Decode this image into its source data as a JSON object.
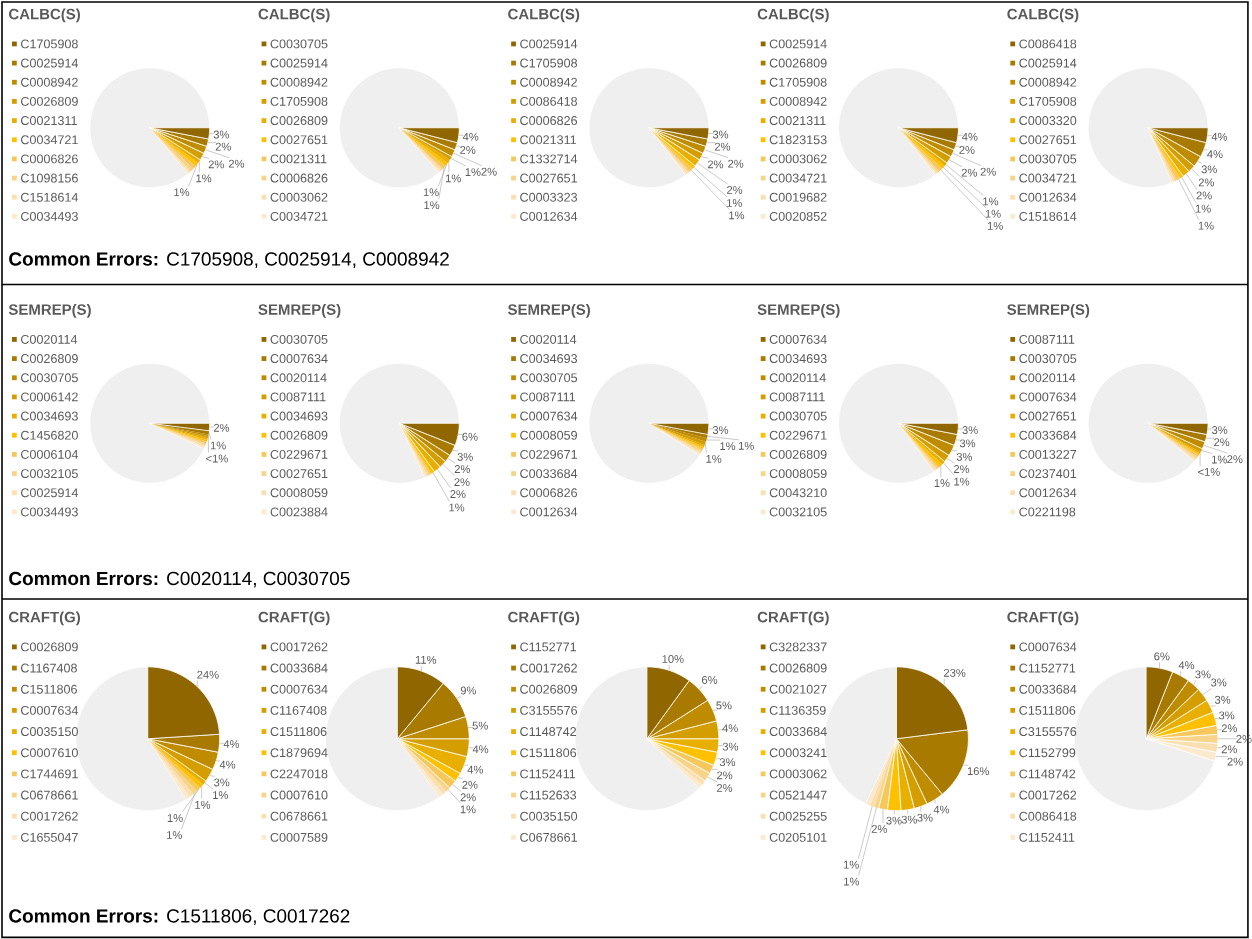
{
  "chart_data": [
    {
      "type": "pie",
      "title": "CALBC(S)",
      "legend": "left",
      "categories": [
        "C1705908",
        "C0025914",
        "C0008942",
        "C0026809",
        "C0021311",
        "C0034721",
        "C0006826",
        "C1098156",
        "C1518614",
        "C0034493",
        null
      ],
      "values": [
        3,
        2,
        2,
        2,
        1,
        1,
        1,
        1,
        0.5,
        0.5,
        86
      ],
      "value_labels": [
        "3%",
        "2%",
        "2%",
        "2%",
        "1%",
        "1%",
        null,
        null,
        null,
        null,
        null
      ],
      "colors": [
        "#8f6600",
        "#a87a00",
        "#bf8c00",
        "#d49d00",
        "#e8ae00",
        "#ffc000",
        "#f6c85c",
        "#f8d48a",
        "#fadfb0",
        "#fceacf",
        "#efefef"
      ]
    },
    {
      "type": "pie",
      "title": "CALBC(S)",
      "legend": "left",
      "categories": [
        "C0030705",
        "C0025914",
        "C0008942",
        "C1705908",
        "C0026809",
        "C0027651",
        "C0021311",
        "C0006826",
        "C0003062",
        "C0034721",
        null
      ],
      "values": [
        4,
        2,
        2,
        1,
        1,
        1,
        1,
        0.5,
        0.5,
        0.5,
        86.5
      ],
      "value_labels": [
        "4%",
        "2%",
        "2%",
        "1%",
        "1%",
        "1%",
        "1%",
        null,
        null,
        null,
        null
      ],
      "colors": [
        "#8f6600",
        "#a87a00",
        "#bf8c00",
        "#d49d00",
        "#e8ae00",
        "#ffc000",
        "#f6c85c",
        "#f8d48a",
        "#fadfb0",
        "#fceacf",
        "#efefef"
      ]
    },
    {
      "type": "pie",
      "title": "CALBC(S)",
      "legend": "left",
      "categories": [
        "C0025914",
        "C1705908",
        "C0008942",
        "C0086418",
        "C0006826",
        "C0021311",
        "C1332714",
        "C0027651",
        "C0003323",
        "C0012634",
        null
      ],
      "values": [
        3,
        2,
        2,
        2,
        2,
        1,
        1,
        0.5,
        0.5,
        0.5,
        85.5
      ],
      "value_labels": [
        "3%",
        "2%",
        "2%",
        "2%",
        "2%",
        "1%",
        "1%",
        null,
        null,
        null,
        null
      ],
      "colors": [
        "#8f6600",
        "#a87a00",
        "#bf8c00",
        "#d49d00",
        "#e8ae00",
        "#ffc000",
        "#f6c85c",
        "#f8d48a",
        "#fadfb0",
        "#fceacf",
        "#efefef"
      ]
    },
    {
      "type": "pie",
      "title": "CALBC(S)",
      "legend": "left",
      "categories": [
        "C0025914",
        "C0026809",
        "C1705908",
        "C0008942",
        "C0021311",
        "C1823153",
        "C0003062",
        "C0034721",
        "C0019682",
        "C0020852",
        null
      ],
      "values": [
        4,
        2,
        2,
        2,
        1,
        1,
        1,
        0.5,
        0.5,
        0.5,
        85.5
      ],
      "value_labels": [
        "4%",
        "2%",
        "2%",
        "2%",
        "1%",
        "1%",
        "1%",
        null,
        null,
        null,
        null
      ],
      "colors": [
        "#8f6600",
        "#a87a00",
        "#bf8c00",
        "#d49d00",
        "#e8ae00",
        "#ffc000",
        "#f6c85c",
        "#f8d48a",
        "#fadfb0",
        "#fceacf",
        "#efefef"
      ]
    },
    {
      "type": "pie",
      "title": "CALBC(S)",
      "legend": "left",
      "categories": [
        "C0086418",
        "C0025914",
        "C0008942",
        "C1705908",
        "C0003320",
        "C0027651",
        "C0030705",
        "C0034721",
        "C0012634",
        "C1518614",
        null
      ],
      "values": [
        4,
        4,
        3,
        2,
        2,
        1,
        1,
        0.5,
        0.5,
        0.5,
        81.5
      ],
      "value_labels": [
        "4%",
        "4%",
        "3%",
        "2%",
        "2%",
        "1%",
        "1%",
        null,
        null,
        null,
        null
      ],
      "colors": [
        "#8f6600",
        "#a87a00",
        "#bf8c00",
        "#d49d00",
        "#e8ae00",
        "#ffc000",
        "#f6c85c",
        "#f8d48a",
        "#fadfb0",
        "#fceacf",
        "#efefef"
      ]
    },
    {
      "type": "other",
      "annotations": [
        "**Common Errors:** C1705908, C0025914, C0008942"
      ]
    },
    {
      "type": "pie",
      "title": "SEMREP(S)",
      "legend": "left",
      "categories": [
        "C0020114",
        "C0026809",
        "C0030705",
        "C0006142",
        "C0034693",
        "C1456820",
        "C0006104",
        "C0032105",
        "C0025914",
        "C0034493",
        null
      ],
      "values": [
        2,
        1,
        0.5,
        0.5,
        0.5,
        0.5,
        0.5,
        0.5,
        0.5,
        0.5,
        93
      ],
      "value_labels": [
        "2%",
        "1%",
        "<1%",
        null,
        null,
        null,
        null,
        null,
        null,
        null,
        null
      ],
      "colors": [
        "#8f6600",
        "#a87a00",
        "#bf8c00",
        "#d49d00",
        "#e8ae00",
        "#ffc000",
        "#f6c85c",
        "#f8d48a",
        "#fadfb0",
        "#fceacf",
        "#efefef"
      ]
    },
    {
      "type": "pie",
      "title": "SEMREP(S)",
      "legend": "left",
      "categories": [
        "C0030705",
        "C0007634",
        "C0020114",
        "C0087111",
        "C0034693",
        "C0026809",
        "C0229671",
        "C0027651",
        "C0008059",
        "C0023884",
        null
      ],
      "values": [
        6,
        3,
        2,
        2,
        2,
        1,
        0.5,
        0.5,
        0.5,
        0.5,
        82
      ],
      "value_labels": [
        "6%",
        "3%",
        "2%",
        "2%",
        "2%",
        "1%",
        null,
        null,
        null,
        null,
        null
      ],
      "colors": [
        "#8f6600",
        "#a87a00",
        "#bf8c00",
        "#d49d00",
        "#e8ae00",
        "#ffc000",
        "#f6c85c",
        "#f8d48a",
        "#fadfb0",
        "#fceacf",
        "#efefef"
      ]
    },
    {
      "type": "pie",
      "title": "SEMREP(S)",
      "legend": "left",
      "categories": [
        "C0020114",
        "C0034693",
        "C0030705",
        "C0087111",
        "C0007634",
        "C0008059",
        "C0229671",
        "C0033684",
        "C0006826",
        "C0012634",
        null
      ],
      "values": [
        3,
        1,
        1,
        1,
        0.5,
        0.5,
        0.5,
        0.5,
        0.5,
        0.5,
        91
      ],
      "value_labels": [
        "3%",
        "1%",
        "1%",
        "1%",
        null,
        null,
        null,
        null,
        null,
        null,
        null
      ],
      "colors": [
        "#8f6600",
        "#a87a00",
        "#bf8c00",
        "#d49d00",
        "#e8ae00",
        "#ffc000",
        "#f6c85c",
        "#f8d48a",
        "#fadfb0",
        "#fceacf",
        "#efefef"
      ]
    },
    {
      "type": "pie",
      "title": "SEMREP(S)",
      "legend": "left",
      "categories": [
        "C0007634",
        "C0034693",
        "C0020114",
        "C0087111",
        "C0030705",
        "C0229671",
        "C0026809",
        "C0008059",
        "C0043210",
        "C0032105",
        null
      ],
      "values": [
        3,
        3,
        3,
        2,
        1,
        1,
        0.5,
        0.5,
        0.5,
        0.5,
        85
      ],
      "value_labels": [
        "3%",
        "3%",
        "3%",
        "2%",
        "1%",
        "1%",
        null,
        null,
        null,
        null,
        null
      ],
      "colors": [
        "#8f6600",
        "#a87a00",
        "#bf8c00",
        "#d49d00",
        "#e8ae00",
        "#ffc000",
        "#f6c85c",
        "#f8d48a",
        "#fadfb0",
        "#fceacf",
        "#efefef"
      ]
    },
    {
      "type": "pie",
      "title": "SEMREP(S)",
      "legend": "left",
      "categories": [
        "C0087111",
        "C0030705",
        "C0020114",
        "C0007634",
        "C0027651",
        "C0033684",
        "C0013227",
        "C0237401",
        "C0012634",
        "C0221198",
        null
      ],
      "values": [
        3,
        2,
        2,
        1,
        0.5,
        0.5,
        0.5,
        0.5,
        0.5,
        0.5,
        89
      ],
      "value_labels": [
        "3%",
        "2%",
        "2%",
        "1%",
        "<1%",
        null,
        null,
        null,
        null,
        null,
        null
      ],
      "colors": [
        "#8f6600",
        "#a87a00",
        "#bf8c00",
        "#d49d00",
        "#e8ae00",
        "#ffc000",
        "#f6c85c",
        "#f8d48a",
        "#fadfb0",
        "#fceacf",
        "#efefef"
      ]
    },
    {
      "type": "other",
      "annotations": [
        "**Common Errors:** C0020114, C0030705"
      ]
    },
    {
      "type": "pie",
      "title": "CRAFT(G)",
      "legend": "left",
      "categories": [
        "C0026809",
        "C1167408",
        "C1511806",
        "C0007634",
        "C0035150",
        "C0007610",
        "C1744691",
        "C0678661",
        "C0017262",
        "C1655047",
        null
      ],
      "values": [
        24,
        4,
        4,
        3,
        1,
        1,
        1,
        1,
        1,
        1,
        59
      ],
      "value_labels": [
        "24%",
        "4%",
        "4%",
        "3%",
        "1%",
        "1%",
        "1%",
        "1%",
        null,
        null,
        null
      ],
      "colors": [
        "#8f6600",
        "#a87a00",
        "#bf8c00",
        "#d49d00",
        "#e8ae00",
        "#ffc000",
        "#f6c85c",
        "#f8d48a",
        "#fadfb0",
        "#fceacf",
        "#efefef"
      ]
    },
    {
      "type": "pie",
      "title": "CRAFT(G)",
      "legend": "left",
      "categories": [
        "C0017262",
        "C0033684",
        "C0007634",
        "C1167408",
        "C1511806",
        "C1879694",
        "C2247018",
        "C0007610",
        "C0678661",
        "C0007589",
        null
      ],
      "values": [
        11,
        9,
        5,
        4,
        4,
        2,
        2,
        1,
        1,
        1,
        60
      ],
      "value_labels": [
        "11%",
        "9%",
        "5%",
        "4%",
        "4%",
        "2%",
        "2%",
        "1%",
        null,
        null,
        null
      ],
      "colors": [
        "#8f6600",
        "#a87a00",
        "#bf8c00",
        "#d49d00",
        "#e8ae00",
        "#ffc000",
        "#f6c85c",
        "#f8d48a",
        "#fadfb0",
        "#fceacf",
        "#efefef"
      ]
    },
    {
      "type": "pie",
      "title": "CRAFT(G)",
      "legend": "left",
      "categories": [
        "C1152771",
        "C0017262",
        "C0026809",
        "C3155576",
        "C1148742",
        "C1511806",
        "C1152411",
        "C1152633",
        "C0035150",
        "C0678661",
        null
      ],
      "values": [
        10,
        6,
        5,
        4,
        3,
        3,
        2,
        2,
        1,
        1,
        63
      ],
      "value_labels": [
        "10%",
        "6%",
        "5%",
        "4%",
        "3%",
        "3%",
        "2%",
        "2%",
        null,
        null,
        null
      ],
      "colors": [
        "#8f6600",
        "#a87a00",
        "#bf8c00",
        "#d49d00",
        "#e8ae00",
        "#ffc000",
        "#f6c85c",
        "#f8d48a",
        "#fadfb0",
        "#fceacf",
        "#efefef"
      ]
    },
    {
      "type": "pie",
      "title": "CRAFT(G)",
      "legend": "left",
      "categories": [
        "C3282337",
        "C0026809",
        "C0021027",
        "C1136359",
        "C0033684",
        "C0003241",
        "C0003062",
        "C0521447",
        "C0025255",
        "C0205101",
        null
      ],
      "values": [
        23,
        16,
        4,
        3,
        3,
        3,
        2,
        1,
        1,
        1,
        43
      ],
      "value_labels": [
        "23%",
        "16%",
        "4%",
        "3%",
        "3%",
        "3%",
        "2%",
        "1%",
        "1%",
        null,
        null
      ],
      "colors": [
        "#8f6600",
        "#a87a00",
        "#bf8c00",
        "#d49d00",
        "#e8ae00",
        "#ffc000",
        "#f6c85c",
        "#f8d48a",
        "#fadfb0",
        "#fceacf",
        "#efefef"
      ]
    },
    {
      "type": "pie",
      "title": "CRAFT(G)",
      "legend": "left",
      "categories": [
        "C0007634",
        "C1152771",
        "C0033684",
        "C1511806",
        "C3155576",
        "C1152799",
        "C1148742",
        "C0017262",
        "C0086418",
        "C1152411",
        null
      ],
      "values": [
        6,
        4,
        3,
        3,
        3,
        3,
        2,
        2,
        2,
        2,
        70
      ],
      "value_labels": [
        "6%",
        "4%",
        "3%",
        "3%",
        "3%",
        "3%",
        "2%",
        "2%",
        "2%",
        "2%",
        null
      ],
      "colors": [
        "#8f6600",
        "#a87a00",
        "#bf8c00",
        "#d49d00",
        "#e8ae00",
        "#ffc000",
        "#f6c85c",
        "#f8d48a",
        "#fadfb0",
        "#fceacf",
        "#efefef"
      ]
    },
    {
      "type": "other",
      "annotations": [
        "**Common Errors:** C1511806, C0017262"
      ]
    }
  ]
}
